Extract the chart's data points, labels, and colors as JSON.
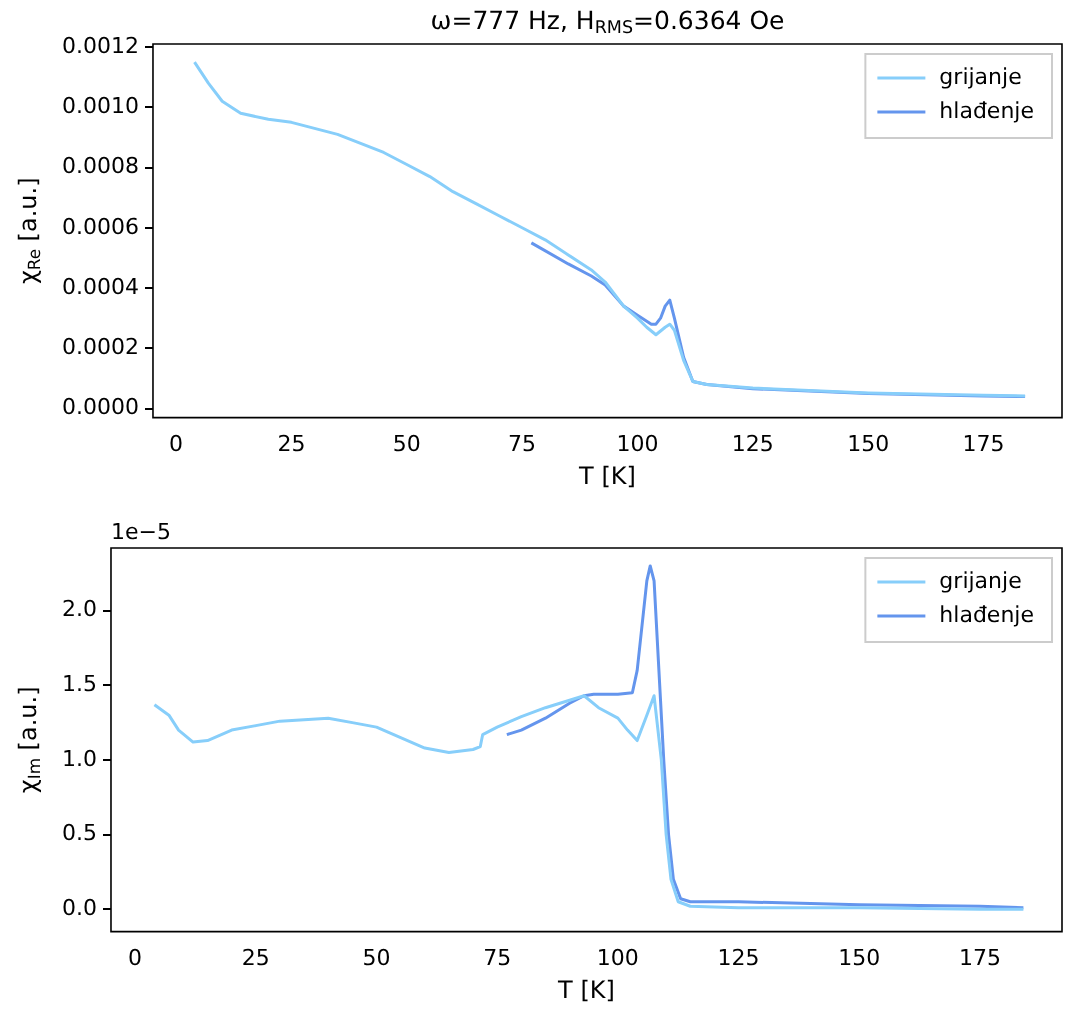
{
  "chart_data": [
    {
      "type": "line",
      "title": "ω=777 Hz, H$_{RMS}$=0.6364 Oe",
      "xlabel": "T [K]",
      "ylabel": "χ$_{Re}$ [a.u.]",
      "xlim": [
        -5,
        192
      ],
      "xticks": [
        0,
        25,
        50,
        75,
        100,
        125,
        150,
        175
      ],
      "ylim": [
        -3e-05,
        0.00121
      ],
      "yticks": [
        {
          "value": 0,
          "label": "0.0000"
        },
        {
          "value": 0.0002,
          "label": "0.0002"
        },
        {
          "value": 0.0004,
          "label": "0.0004"
        },
        {
          "value": 0.0006,
          "label": "0.0006"
        },
        {
          "value": 0.0008,
          "label": "0.0008"
        },
        {
          "value": 0.001,
          "label": "0.0010"
        },
        {
          "value": 0.0012,
          "label": "0.0012"
        }
      ],
      "grid": false,
      "legend": "top right",
      "series": [
        {
          "name": "grijanje",
          "color": "#87cefa",
          "x": [
            4,
            7,
            10,
            14,
            20,
            25,
            30,
            35,
            40,
            45,
            50,
            55,
            60,
            65,
            70,
            75,
            80,
            85,
            90,
            93,
            97,
            100,
            102,
            104,
            106,
            107,
            108,
            110,
            112,
            115,
            125,
            150,
            175,
            184
          ],
          "values": [
            0.00115,
            0.00108,
            0.00102,
            0.00098,
            0.00096,
            0.00095,
            0.00093,
            0.00091,
            0.00088,
            0.00085,
            0.00081,
            0.00077,
            0.00072,
            0.00068,
            0.00064,
            0.0006,
            0.00056,
            0.00051,
            0.00046,
            0.00042,
            0.00034,
            0.0003,
            0.00027,
            0.000245,
            0.00027,
            0.00028,
            0.00026,
            0.00016,
            9e-05,
            8e-05,
            6.8e-05,
            5.2e-05,
            4.4e-05,
            4.2e-05
          ]
        },
        {
          "name": "hlađenje",
          "color": "#6495ed",
          "x": [
            77,
            85,
            90,
            93,
            97,
            100,
            103,
            104,
            105,
            106,
            107,
            108,
            110,
            112,
            115,
            125,
            150,
            175,
            184
          ],
          "values": [
            0.00055,
            0.00048,
            0.00044,
            0.00041,
            0.00034,
            0.00031,
            0.00028,
            0.00028,
            0.0003,
            0.00034,
            0.00036,
            0.0003,
            0.00017,
            9e-05,
            8e-05,
            6.6e-05,
            5e-05,
            4.2e-05,
            4e-05
          ]
        }
      ]
    },
    {
      "type": "line",
      "xlabel": "T [K]",
      "ylabel": "χ$_{Im}$ [a.u.]",
      "annotations": [
        "1e−5"
      ],
      "xlim": [
        -5,
        192
      ],
      "xticks": [
        0,
        25,
        50,
        75,
        100,
        125,
        150,
        175
      ],
      "ylim": [
        -0.15,
        2.42
      ],
      "yticks": [
        {
          "value": 0,
          "label": "0.0"
        },
        0.5,
        {
          "value": 1,
          "label": "1.0"
        },
        1.5,
        {
          "value": 2,
          "label": "2.0"
        }
      ],
      "grid": false,
      "legend": "top right",
      "series": [
        {
          "name": "grijanje",
          "color": "#87cefa",
          "x": [
            4,
            7,
            9,
            12,
            15,
            20,
            25,
            30,
            35,
            40,
            45,
            50,
            55,
            60,
            65,
            70,
            71.5,
            72,
            75,
            80,
            85,
            90,
            93,
            96,
            100,
            102,
            104,
            106,
            107.5,
            109,
            110,
            111,
            112.5,
            115,
            125,
            150,
            175,
            184
          ],
          "values": [
            1.37,
            1.3,
            1.2,
            1.12,
            1.13,
            1.2,
            1.23,
            1.26,
            1.27,
            1.28,
            1.25,
            1.22,
            1.15,
            1.08,
            1.05,
            1.07,
            1.09,
            1.17,
            1.22,
            1.29,
            1.35,
            1.4,
            1.43,
            1.35,
            1.28,
            1.2,
            1.13,
            1.3,
            1.43,
            1.0,
            0.5,
            0.2,
            0.05,
            0.02,
            0.01,
            0.01,
            0.0,
            0.0
          ]
        },
        {
          "name": "hlađenje",
          "color": "#6495ed",
          "x": [
            77,
            80,
            85,
            90,
            93,
            95,
            100,
            103,
            104,
            105,
            106,
            106.7,
            107.5,
            108.5,
            109.5,
            110.5,
            111.5,
            113,
            115,
            125,
            150,
            175,
            184
          ],
          "values": [
            1.17,
            1.2,
            1.28,
            1.38,
            1.43,
            1.44,
            1.44,
            1.45,
            1.6,
            1.9,
            2.2,
            2.3,
            2.2,
            1.6,
            1.0,
            0.5,
            0.2,
            0.07,
            0.05,
            0.05,
            0.03,
            0.02,
            0.01
          ]
        }
      ]
    }
  ]
}
